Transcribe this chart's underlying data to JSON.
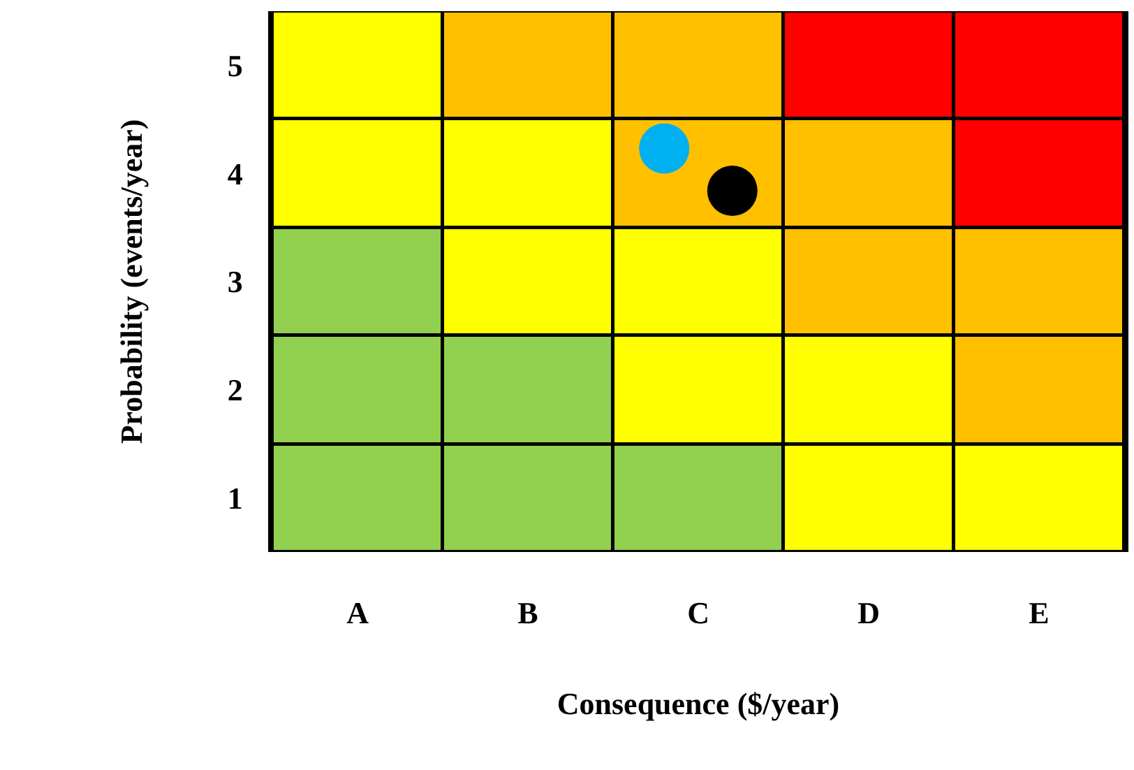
{
  "chart_data": {
    "type": "bar",
    "stacked": true,
    "xlabel": "Consequence ($/year)",
    "ylabel": "Probability (events/year)",
    "categories": [
      "A",
      "B",
      "C",
      "D",
      "E"
    ],
    "ylim": [
      0,
      5
    ],
    "yticks": [
      {
        "value": 0.5,
        "label": "1"
      },
      {
        "value": 1.5,
        "label": "2"
      },
      {
        "value": 2.5,
        "label": "3"
      },
      {
        "value": 3.5,
        "label": "4"
      },
      {
        "value": 4.5,
        "label": "5"
      }
    ],
    "series": [
      {
        "values": [
          1,
          1,
          1,
          1,
          1
        ],
        "colors": [
          "#92d050",
          "#92d050",
          "#92d050",
          "#ffff00",
          "#ffff00"
        ]
      },
      {
        "values": [
          1,
          1,
          1,
          1,
          1
        ],
        "colors": [
          "#92d050",
          "#92d050",
          "#ffff00",
          "#ffff00",
          "#ffc000"
        ]
      },
      {
        "values": [
          1,
          1,
          1,
          1,
          1
        ],
        "colors": [
          "#92d050",
          "#ffff00",
          "#ffff00",
          "#ffc000",
          "#ffc000"
        ]
      },
      {
        "values": [
          1,
          1,
          1,
          1,
          1
        ],
        "colors": [
          "#ffff00",
          "#ffff00",
          "#ffc000",
          "#ffc000",
          "#ff0000"
        ]
      },
      {
        "values": [
          1,
          1,
          1,
          1,
          1
        ],
        "colors": [
          "#ffff00",
          "#ffc000",
          "#ffc000",
          "#ff0000",
          "#ff0000"
        ]
      },
      {
        "type": "scatter",
        "color": "#00b0f0",
        "x": [
          "C"
        ],
        "values": [
          3.73
        ]
      },
      {
        "type": "scatter",
        "color": "#000000",
        "x": [
          "C"
        ],
        "values": [
          3.34
        ]
      }
    ],
    "marker": "circle"
  }
}
